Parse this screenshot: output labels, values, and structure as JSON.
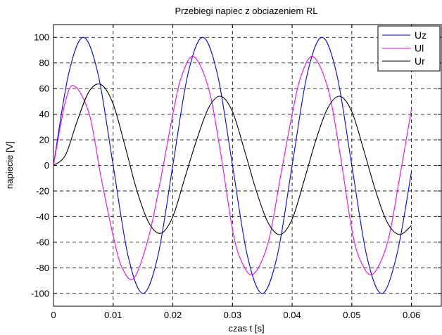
{
  "chart_data": {
    "type": "line",
    "title": "Przebiegi napiec z obciazeniem RL",
    "xlabel": "czas t [s]",
    "ylabel": "napiecie [V]",
    "xlim": [
      0,
      0.065
    ],
    "ylim": [
      -110,
      110
    ],
    "xticks": [
      0,
      0.01,
      0.02,
      0.03,
      0.04,
      0.05,
      0.06
    ],
    "xtick_labels": [
      "0",
      "0.01",
      "0.02",
      "0.03",
      "0.04",
      "0.05",
      "0.06"
    ],
    "yticks": [
      -100,
      -80,
      -60,
      -40,
      -20,
      0,
      20,
      40,
      60,
      80,
      100
    ],
    "ytick_labels": [
      "-100",
      "-80",
      "-60",
      "-40",
      "-20",
      "0",
      "20",
      "40",
      "60",
      "80",
      "100"
    ],
    "grid": true,
    "legend": "top-right",
    "series": [
      {
        "name": "Uz",
        "color": "#0000ff",
        "x": [
          0,
          0.0025,
          0.005,
          0.0075,
          0.01,
          0.0125,
          0.015,
          0.0175,
          0.02,
          0.0225,
          0.025,
          0.0275,
          0.03,
          0.0325,
          0.035,
          0.0375,
          0.04,
          0.0425,
          0.045,
          0.0475,
          0.05,
          0.0525,
          0.055,
          0.0575,
          0.06
        ],
        "values": [
          0,
          70.7,
          100,
          70.7,
          0,
          -70.7,
          -100,
          -70.7,
          0,
          70.7,
          100,
          70.7,
          0,
          -70.7,
          -100,
          -70.7,
          0,
          70.7,
          100,
          70.7,
          0,
          -70.7,
          -100,
          -70.7,
          -5
        ]
      },
      {
        "name": "Ul",
        "color": "#ff00ff",
        "x": [
          0,
          0.002,
          0.0035,
          0.006,
          0.008,
          0.01,
          0.0115,
          0.0135,
          0.016,
          0.018,
          0.02,
          0.0215,
          0.0235,
          0.026,
          0.028,
          0.03,
          0.0315,
          0.0335,
          0.036,
          0.038,
          0.04,
          0.0415,
          0.0435,
          0.046,
          0.048,
          0.05,
          0.0515,
          0.0535,
          0.056,
          0.058,
          0.06
        ],
        "values": [
          0,
          50,
          62,
          40,
          -10,
          -55,
          -80,
          -88,
          -55,
          -10,
          40,
          70,
          85,
          60,
          10,
          -50,
          -75,
          -85,
          -60,
          -10,
          40,
          70,
          85,
          60,
          10,
          -50,
          -75,
          -85,
          -60,
          -10,
          44
        ]
      },
      {
        "name": "Ur",
        "color": "#000000",
        "x": [
          0,
          0.002,
          0.004,
          0.006,
          0.008,
          0.01,
          0.012,
          0.014,
          0.016,
          0.018,
          0.02,
          0.022,
          0.024,
          0.026,
          0.028,
          0.03,
          0.032,
          0.034,
          0.036,
          0.038,
          0.04,
          0.042,
          0.044,
          0.046,
          0.048,
          0.05,
          0.052,
          0.054,
          0.056,
          0.058,
          0.06
        ],
        "values": [
          0,
          8,
          35,
          58,
          63,
          48,
          15,
          -20,
          -45,
          -53,
          -40,
          -10,
          20,
          45,
          54,
          42,
          12,
          -20,
          -45,
          -54,
          -42,
          -12,
          20,
          45,
          54,
          42,
          12,
          -20,
          -45,
          -54,
          -47
        ]
      }
    ]
  }
}
